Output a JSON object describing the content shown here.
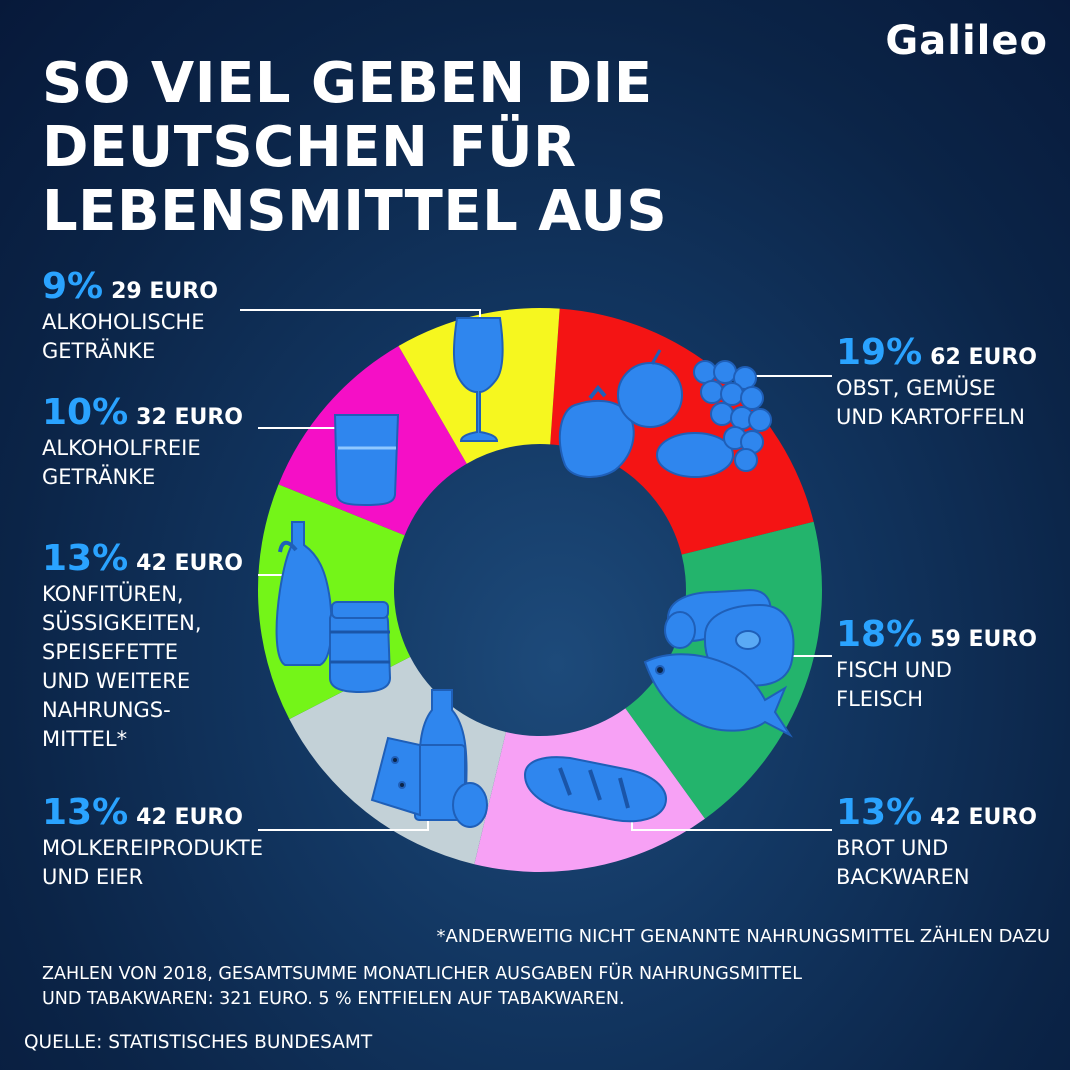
{
  "logo": "Galileo",
  "title_lines": [
    "SO VIEL GEBEN DIE",
    "DEUTSCHEN FÜR",
    "LEBENSMITTEL AUS"
  ],
  "colors": {
    "background": "#0b2447",
    "accent_blue": "#2aa3ff",
    "icon_blue": "#2f86ee"
  },
  "chart_data": {
    "type": "pie",
    "style": "donut",
    "slices": [
      {
        "key": "obst",
        "percent": 19,
        "value": 62,
        "percent_label": "19%",
        "euro_label": "62 EURO",
        "name_lines": [
          "OBST, GEMÜSE",
          "UND KARTOFFELN"
        ],
        "color": "#f41414",
        "icon": "vegetables-fruit-icon"
      },
      {
        "key": "fisch",
        "percent": 18,
        "value": 59,
        "percent_label": "18%",
        "euro_label": "59 EURO",
        "name_lines": [
          "FISCH UND",
          "FLEISCH"
        ],
        "color": "#23b46c",
        "icon": "fish-meat-icon"
      },
      {
        "key": "brot",
        "percent": 13,
        "value": 42,
        "percent_label": "13%",
        "euro_label": "42 EURO",
        "name_lines": [
          "BROT UND",
          "BACKWAREN"
        ],
        "color": "#f7a1f5",
        "icon": "bread-icon"
      },
      {
        "key": "molkerei",
        "percent": 13,
        "value": 42,
        "percent_label": "13%",
        "euro_label": "42 EURO",
        "name_lines": [
          "MOLKEREIPRODUKTE",
          "UND EIER"
        ],
        "color": "#c3d1d7",
        "icon": "dairy-icon"
      },
      {
        "key": "konfituere",
        "percent": 13,
        "value": 42,
        "percent_label": "13%",
        "euro_label": "42 EURO",
        "name_lines": [
          "KONFITÜREN,",
          "SÜSSIGKEITEN,",
          "SPEISEFETTE",
          "UND WEITERE",
          "NAHRUNGS-",
          "MITTEL*"
        ],
        "color": "#74f518",
        "icon": "oil-jar-icon"
      },
      {
        "key": "alkoholfrei",
        "percent": 10,
        "value": 32,
        "percent_label": "10%",
        "euro_label": "32 EURO",
        "name_lines": [
          "ALKOHOLFREIE",
          "GETRÄNKE"
        ],
        "color": "#f50fc6",
        "icon": "water-glass-icon"
      },
      {
        "key": "alkohol",
        "percent": 9,
        "value": 29,
        "percent_label": "9%",
        "euro_label": "29 EURO",
        "name_lines": [
          "ALKOHOLISCHE",
          "GETRÄNKE"
        ],
        "color": "#f6f71f",
        "icon": "wine-glass-icon"
      }
    ]
  },
  "footnote": "*ANDERWEITIG NICHT GENANNTE NAHRUNGSMITTEL ZÄHLEN DAZU",
  "note_lines": [
    "ZAHLEN VON 2018, GESAMTSUMME MONATLICHER AUSGABEN FÜR NAHRUNGSMITTEL",
    "UND TABAKWAREN: 321 EURO. 5 % ENTFIELEN AUF TABAKWAREN."
  ],
  "source": "QUELLE: STATISTISCHES BUNDESAMT"
}
